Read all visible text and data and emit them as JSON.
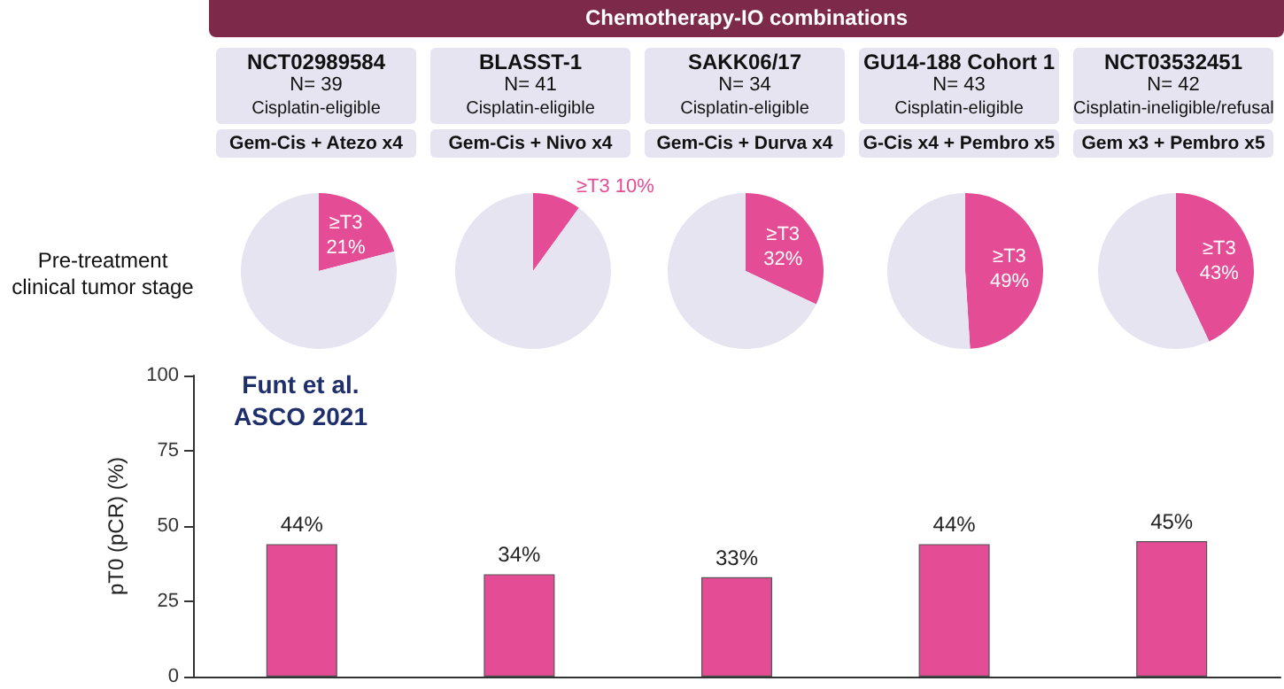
{
  "chart_data": [
    {
      "type": "other",
      "title": "Chemotherapy-IO combinations",
      "annotations": [
        "NCT02989584",
        "N= 39",
        "Cisplatin-eligible",
        "Gem-Cis + Atezo x4",
        "BLASST-1",
        "N= 41",
        "Cisplatin-eligible",
        "Gem-Cis + Nivo x4",
        "SAKK06/17",
        "N= 34",
        "Cisplatin-eligible",
        "Gem-Cis + Durva x4",
        "GU14-188 Cohort 1",
        "N= 43",
        "Cisplatin-eligible",
        "G-Cis x4 + Pembro x5",
        "NCT03532451",
        "N= 42",
        "Cisplatin-ineligible/refusal",
        "Gem x3 + Pembro x5",
        "Pre-treatment clinical tumor stage"
      ]
    },
    {
      "type": "pie",
      "categories": [
        "≥T3",
        null
      ],
      "values": [
        21,
        79
      ],
      "colors": [
        "#e44c95",
        "#e6e4f0"
      ],
      "value_labels": [
        "21%",
        null
      ]
    },
    {
      "type": "pie",
      "categories": [
        "≥T3",
        null
      ],
      "values": [
        10,
        90
      ],
      "colors": [
        "#e44c95",
        "#e6e4f0"
      ],
      "value_labels": [
        "10%",
        null
      ]
    },
    {
      "type": "pie",
      "categories": [
        "≥T3",
        null
      ],
      "values": [
        32,
        68
      ],
      "colors": [
        "#e44c95",
        "#e6e4f0"
      ],
      "value_labels": [
        "32%",
        null
      ]
    },
    {
      "type": "pie",
      "categories": [
        "≥T3",
        null
      ],
      "values": [
        49,
        51
      ],
      "colors": [
        "#e44c95",
        "#e6e4f0"
      ],
      "value_labels": [
        "49%",
        null
      ]
    },
    {
      "type": "pie",
      "categories": [
        "≥T3",
        null
      ],
      "values": [
        43,
        57
      ],
      "colors": [
        "#e44c95",
        "#e6e4f0"
      ],
      "value_labels": [
        "43%",
        null
      ]
    },
    {
      "type": "bar",
      "categories": [
        null,
        null,
        null,
        null,
        null
      ],
      "values": [
        44,
        34,
        33,
        44,
        45
      ],
      "color": "#e44c95",
      "value_labels": [
        "44%",
        "34%",
        "33%",
        "44%",
        "45%"
      ],
      "ylabel": "pT0 (pCR) (%)",
      "ylim": [
        0,
        100
      ],
      "yticks": [
        0,
        25,
        50,
        75,
        100
      ],
      "annotations": [
        "Funt et al.\nASCO 2021"
      ],
      "grid": false
    }
  ]
}
